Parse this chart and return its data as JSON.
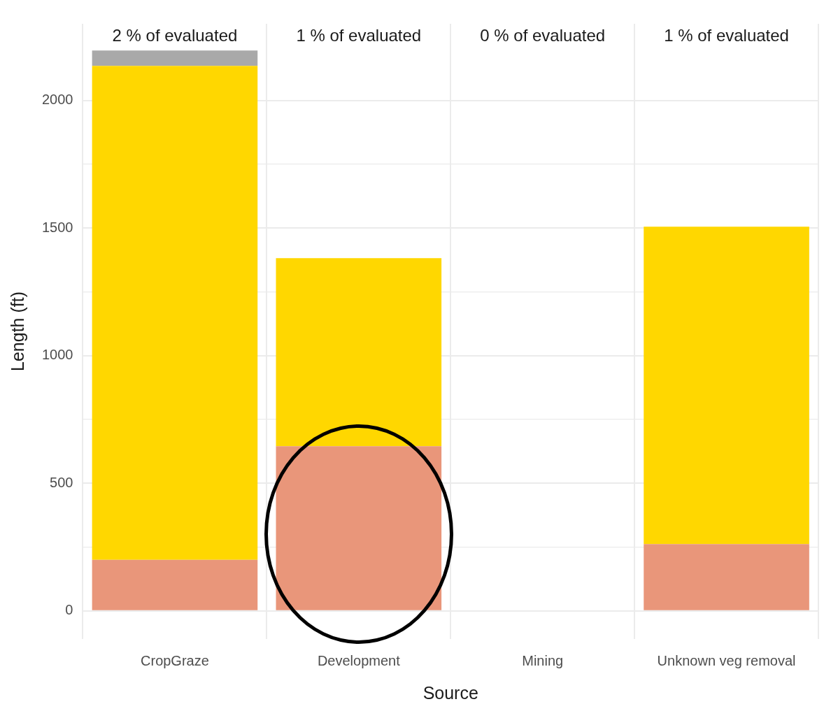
{
  "chart_data": {
    "type": "bar",
    "stacked": true,
    "xlabel": "Source",
    "ylabel": "Length (ft)",
    "categories": [
      "CropGraze",
      "Development",
      "Mining",
      "Unknown veg removal"
    ],
    "series": [
      {
        "color": "#e9967a",
        "values": [
          200,
          645,
          0,
          262
        ]
      },
      {
        "color": "#ffd700",
        "values": [
          1935,
          737,
          0,
          1243
        ]
      },
      {
        "color": "#a9a9a9",
        "values": [
          60,
          0,
          0,
          0
        ]
      }
    ],
    "ylim": [
      -110,
      2300
    ],
    "yticks": [
      0,
      {
        "value": 250,
        "label": null
      },
      500,
      {
        "value": 750,
        "label": null
      },
      1000,
      {
        "value": 1250,
        "label": null
      },
      1500,
      {
        "value": 1750,
        "label": null
      },
      2000
    ],
    "grid": true,
    "legend": false,
    "annotations": [
      "2 % of evaluated",
      "1 % of evaluated",
      "0 % of evaluated",
      "1 % of evaluated"
    ]
  }
}
